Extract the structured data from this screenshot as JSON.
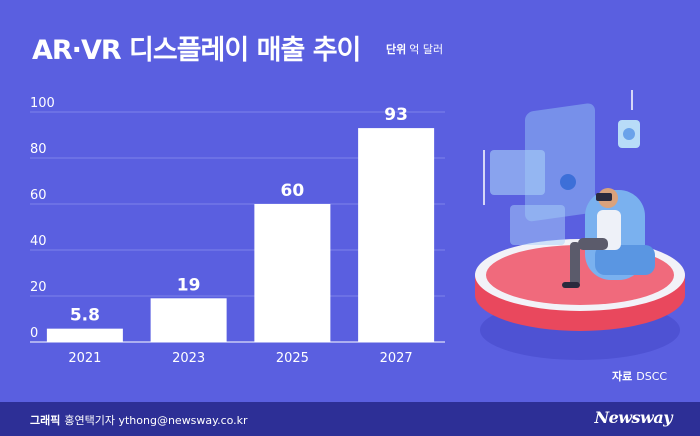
{
  "header": {
    "title": "AR·VR 디스플레이 매출 추이",
    "unit_label": "단위",
    "unit_value": "억 달러"
  },
  "source": {
    "label": "자료",
    "value": "DSCC"
  },
  "footer": {
    "credit_label": "그래픽",
    "credit_value": "홍연택기자 ythong@newsway.co.kr",
    "brand": "Newsway"
  },
  "colors": {
    "background": "#5a5fe0",
    "bar": "#ffffff",
    "footer": "#2d2f96"
  },
  "chart_data": {
    "type": "bar",
    "title": "AR·VR 디스플레이 매출 추이",
    "unit": "억 달러",
    "categories": [
      "2021",
      "2023",
      "2025",
      "2027"
    ],
    "values": [
      5.8,
      19,
      60,
      93
    ],
    "value_labels": [
      "5.8",
      "19",
      "60",
      "93"
    ],
    "ylim": [
      0,
      100
    ],
    "yticks": [
      "0",
      "20",
      "40",
      "60",
      "80",
      "100"
    ],
    "grid": true,
    "legend": "none"
  }
}
